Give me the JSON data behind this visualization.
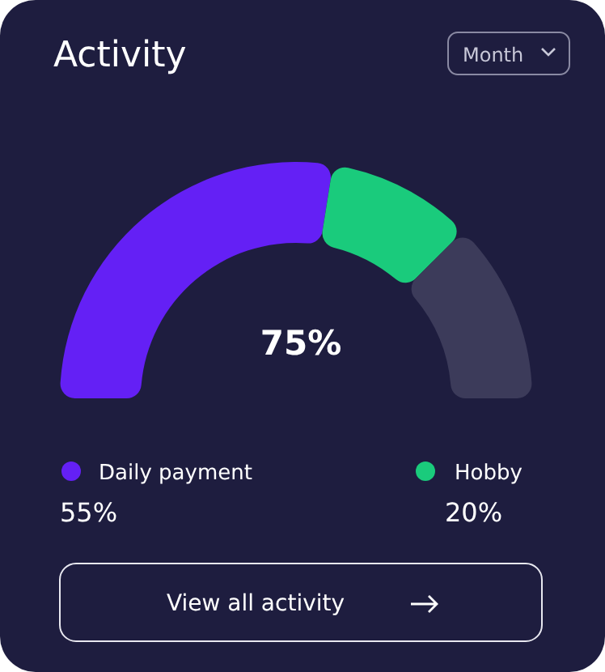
{
  "chart_data": {
    "type": "donut",
    "title": "Activity",
    "categories": [
      "Daily payment",
      "Hobby",
      null
    ],
    "values": [
      55,
      20,
      25
    ],
    "colors": [
      "#6420f5",
      "#1acb7c",
      "#3c3b5a"
    ],
    "value_labels": [
      "55%",
      "20%",
      null
    ],
    "legend": "bottom",
    "annotations": [
      "75%",
      "Month",
      "View all activity"
    ]
  }
}
